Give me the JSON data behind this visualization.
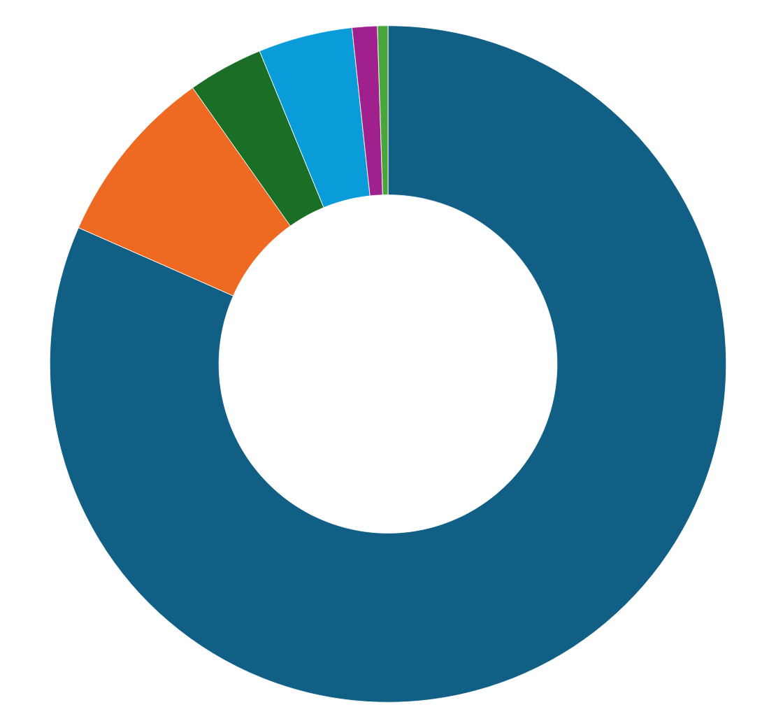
{
  "chart_data": {
    "type": "donut",
    "categories": [
      null,
      null,
      null,
      null,
      null,
      null
    ],
    "values": [
      81.6,
      8.6,
      3.6,
      4.5,
      1.2,
      0.5
    ],
    "colors": [
      "#125f85",
      "#ee6a22",
      "#1a6e25",
      "#0a9cd8",
      "#a0208e",
      "#4aa63c"
    ]
  }
}
